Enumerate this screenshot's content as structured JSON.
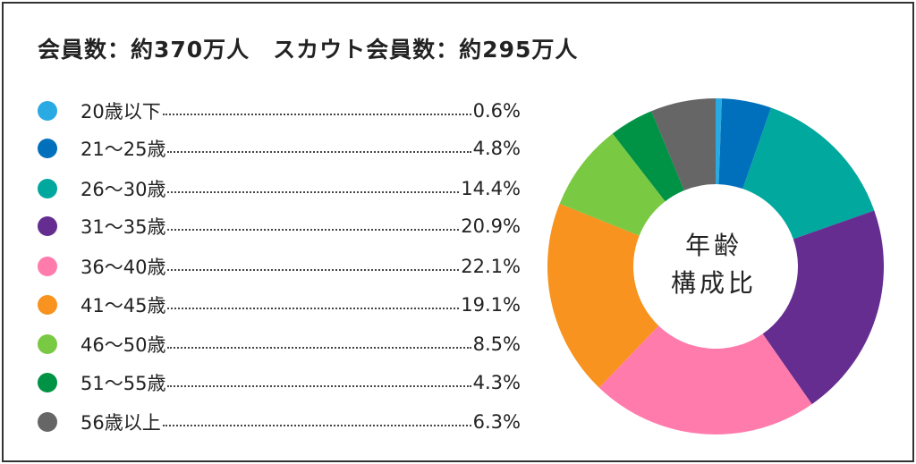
{
  "chart_data": {
    "type": "pie",
    "title": "会員数：約370万人　スカウト会員数：約295万人",
    "center_label": [
      "年齢",
      "構成比"
    ],
    "legend_position": "left",
    "categories": [
      "20歳以下",
      "21〜25歳",
      "26〜30歳",
      "31〜35歳",
      "36〜40歳",
      "41〜45歳",
      "46〜50歳",
      "51〜55歳",
      "56歳以上"
    ],
    "values": [
      0.6,
      4.8,
      14.4,
      20.9,
      22.1,
      19.1,
      8.5,
      4.3,
      6.3
    ],
    "value_labels": [
      "0.6%",
      "4.8%",
      "14.4%",
      "20.9%",
      "22.1%",
      "19.1%",
      "8.5%",
      "4.3%",
      "6.3%"
    ],
    "colors": [
      "#2aaae2",
      "#0070bd",
      "#00a89d",
      "#652d90",
      "#ff7bac",
      "#f7931e",
      "#7ac943",
      "#009245",
      "#666666"
    ]
  }
}
